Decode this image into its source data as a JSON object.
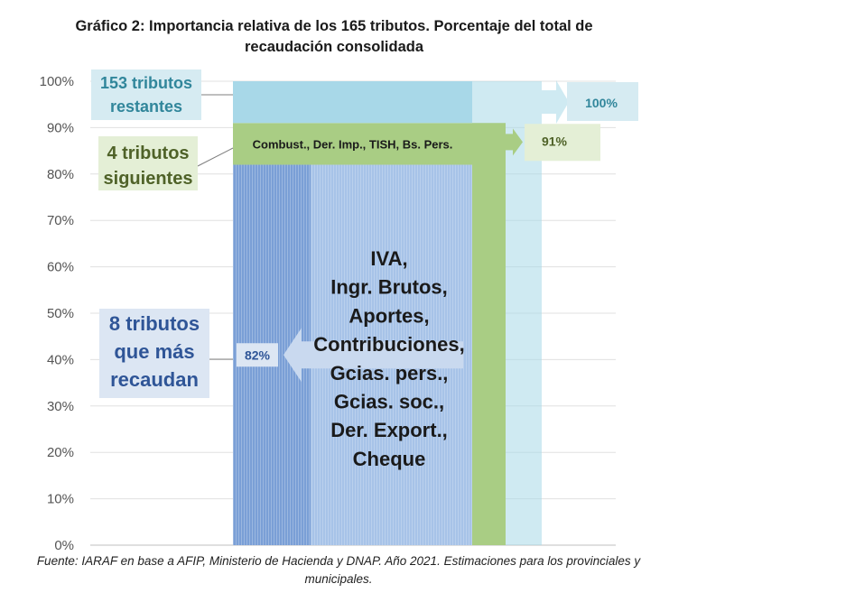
{
  "title": "Gráfico 2: Importancia relativa de los 165 tributos. Porcentaje del total de recaudación consolidada",
  "source": "Fuente: IARAF en base a AFIP, Ministerio de Hacienda y DNAP. Año 2021. Estimaciones para los provinciales y municipales.",
  "colors": {
    "top": "#a8d8e8",
    "middle": "#a9cd84",
    "bottom": "#a7c3e8",
    "bottom_dark": "#7a9fd6"
  },
  "chart_data": {
    "type": "bar",
    "subtype": "stacked-cumulative",
    "ylim": [
      0,
      100
    ],
    "yticks": [
      "0%",
      "10%",
      "20%",
      "30%",
      "40%",
      "50%",
      "60%",
      "70%",
      "80%",
      "90%",
      "100%"
    ],
    "grid": true,
    "segments": [
      {
        "group": "8 tributos que más recaudan",
        "from": 0,
        "to": 82,
        "cumulative_label": "82%",
        "taxes": [
          "IVA,",
          "Ingr. Brutos,",
          "Aportes,",
          "Contribuciones,",
          "Gcias. pers.,",
          "Gcias. soc.,",
          "Der. Export.,",
          "Cheque"
        ]
      },
      {
        "group": "4 tributos siguientes",
        "from": 82,
        "to": 91,
        "cumulative_label": "91%",
        "taxes_label": "Combust., Der. Imp., TISH, Bs. Pers."
      },
      {
        "group": "153 tributos restantes",
        "from": 91,
        "to": 100,
        "cumulative_label": "100%"
      }
    ],
    "callouts": [
      {
        "lines": [
          "153 tributos",
          "restantes"
        ],
        "color": "#31869b",
        "fill": "#d6ebf2"
      },
      {
        "lines": [
          "4 tributos",
          "siguientes"
        ],
        "color": "#4f6228",
        "fill": "#e4efd6"
      },
      {
        "lines": [
          "8 tributos",
          "que más",
          "recaudan"
        ],
        "color": "#2f5597",
        "fill": "#dce6f3"
      }
    ]
  }
}
